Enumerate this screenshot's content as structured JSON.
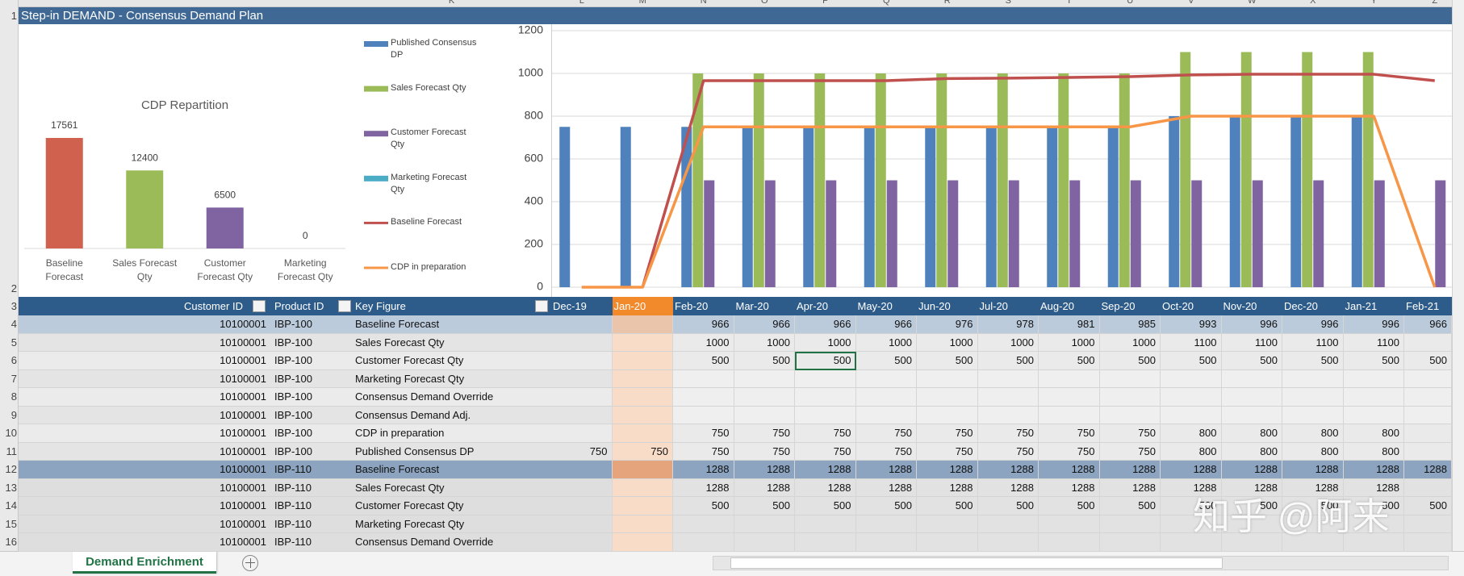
{
  "sheet_title": "Step-in DEMAND - Consensus Demand Plan",
  "column_letters": [
    "K",
    "L",
    "M",
    "N",
    "O",
    "P",
    "Q",
    "R",
    "S",
    "T",
    "U",
    "V",
    "W",
    "X",
    "Y",
    "Z"
  ],
  "row_numbers": [
    1,
    2,
    3,
    4,
    5,
    6,
    7,
    8,
    9,
    10,
    11,
    12,
    13,
    14,
    15,
    16
  ],
  "chart_data": [
    {
      "type": "bar",
      "title": "CDP Repartition",
      "categories": [
        "Baseline Forecast",
        "Sales Forecast Qty",
        "Customer Forecast Qty",
        "Marketing Forecast Qty"
      ],
      "values": [
        17561,
        12400,
        6500,
        0
      ],
      "colors": [
        "#d0614f",
        "#9bbb59",
        "#8064a2",
        "#4bacc6"
      ]
    },
    {
      "type": "combo",
      "categories": [
        "Dec-19",
        "Jan-20",
        "Feb-20",
        "Mar-20",
        "Apr-20",
        "May-20",
        "Jun-20",
        "Jul-20",
        "Aug-20",
        "Sep-20",
        "Oct-20",
        "Nov-20",
        "Dec-20",
        "Jan-21",
        "Feb-21"
      ],
      "ylim": [
        0,
        1200
      ],
      "yticks": [
        0,
        200,
        400,
        600,
        800,
        1000,
        1200
      ],
      "grid": true,
      "series": [
        {
          "name": "Published Consensus DP",
          "type": "bar",
          "color": "#4f81bd",
          "values": [
            750,
            750,
            750,
            750,
            750,
            750,
            750,
            750,
            750,
            750,
            800,
            800,
            800,
            800,
            null
          ]
        },
        {
          "name": "Sales Forecast Qty",
          "type": "bar",
          "color": "#9bbb59",
          "values": [
            null,
            null,
            1000,
            1000,
            1000,
            1000,
            1000,
            1000,
            1000,
            1000,
            1100,
            1100,
            1100,
            1100,
            null
          ]
        },
        {
          "name": "Customer Forecast Qty",
          "type": "bar",
          "color": "#8064a2",
          "values": [
            null,
            null,
            500,
            500,
            500,
            500,
            500,
            500,
            500,
            500,
            500,
            500,
            500,
            500,
            500
          ]
        },
        {
          "name": "Marketing Forecast Qty",
          "type": "bar",
          "color": "#4bacc6",
          "values": [
            null,
            null,
            null,
            null,
            null,
            null,
            null,
            null,
            null,
            null,
            null,
            null,
            null,
            null,
            null
          ]
        },
        {
          "name": "Baseline Forecast",
          "type": "line",
          "color": "#c0504d",
          "values": [
            null,
            0,
            966,
            966,
            966,
            966,
            976,
            978,
            981,
            985,
            993,
            996,
            996,
            996,
            966
          ]
        },
        {
          "name": "CDP in preparation",
          "type": "line",
          "color": "#f79646",
          "values": [
            0,
            0,
            750,
            750,
            750,
            750,
            750,
            750,
            750,
            750,
            800,
            800,
            800,
            800,
            0
          ]
        }
      ]
    }
  ],
  "table": {
    "columns": [
      "Customer ID",
      "Product ID",
      "Key Figure"
    ],
    "rows": [
      {
        "customer": "10100001",
        "product": "IBP-100",
        "key_figure": "Baseline Forecast",
        "values": [
          null,
          null,
          966,
          966,
          966,
          966,
          976,
          978,
          981,
          985,
          993,
          996,
          996,
          996,
          966
        ]
      },
      {
        "customer": "10100001",
        "product": "IBP-100",
        "key_figure": "Sales Forecast Qty",
        "values": [
          null,
          null,
          1000,
          1000,
          1000,
          1000,
          1000,
          1000,
          1000,
          1000,
          1100,
          1100,
          1100,
          1100,
          null
        ]
      },
      {
        "customer": "10100001",
        "product": "IBP-100",
        "key_figure": "Customer Forecast Qty",
        "values": [
          null,
          null,
          500,
          500,
          500,
          500,
          500,
          500,
          500,
          500,
          500,
          500,
          500,
          500,
          500
        ]
      },
      {
        "customer": "10100001",
        "product": "IBP-100",
        "key_figure": "Marketing Forecast Qty",
        "values": [
          null,
          null,
          null,
          null,
          null,
          null,
          null,
          null,
          null,
          null,
          null,
          null,
          null,
          null,
          null
        ]
      },
      {
        "customer": "10100001",
        "product": "IBP-100",
        "key_figure": "Consensus Demand Override",
        "values": [
          null,
          null,
          null,
          null,
          null,
          null,
          null,
          null,
          null,
          null,
          null,
          null,
          null,
          null,
          null
        ]
      },
      {
        "customer": "10100001",
        "product": "IBP-100",
        "key_figure": "Consensus Demand Adj.",
        "values": [
          null,
          null,
          null,
          null,
          null,
          null,
          null,
          null,
          null,
          null,
          null,
          null,
          null,
          null,
          null
        ]
      },
      {
        "customer": "10100001",
        "product": "IBP-100",
        "key_figure": "CDP in preparation",
        "values": [
          null,
          null,
          750,
          750,
          750,
          750,
          750,
          750,
          750,
          750,
          800,
          800,
          800,
          800,
          null
        ]
      },
      {
        "customer": "10100001",
        "product": "IBP-100",
        "key_figure": "Published Consensus DP",
        "values": [
          750,
          750,
          750,
          750,
          750,
          750,
          750,
          750,
          750,
          750,
          800,
          800,
          800,
          800,
          null
        ]
      },
      {
        "customer": "10100001",
        "product": "IBP-110",
        "key_figure": "Baseline Forecast",
        "values": [
          null,
          null,
          1288,
          1288,
          1288,
          1288,
          1288,
          1288,
          1288,
          1288,
          1288,
          1288,
          1288,
          1288,
          1288
        ]
      },
      {
        "customer": "10100001",
        "product": "IBP-110",
        "key_figure": "Sales Forecast Qty",
        "values": [
          null,
          null,
          1288,
          1288,
          1288,
          1288,
          1288,
          1288,
          1288,
          1288,
          1288,
          1288,
          1288,
          1288,
          null
        ]
      },
      {
        "customer": "10100001",
        "product": "IBP-110",
        "key_figure": "Customer Forecast Qty",
        "values": [
          null,
          null,
          500,
          500,
          500,
          500,
          500,
          500,
          500,
          500,
          500,
          500,
          500,
          500,
          500
        ]
      },
      {
        "customer": "10100001",
        "product": "IBP-110",
        "key_figure": "Marketing Forecast Qty",
        "values": [
          null,
          null,
          null,
          null,
          null,
          null,
          null,
          null,
          null,
          null,
          null,
          null,
          null,
          null,
          null
        ]
      },
      {
        "customer": "10100001",
        "product": "IBP-110",
        "key_figure": "Consensus Demand Override",
        "values": [
          null,
          null,
          null,
          null,
          null,
          null,
          null,
          null,
          null,
          null,
          null,
          null,
          null,
          null,
          null
        ]
      }
    ]
  },
  "sheet_tab": "Demand Enrichment",
  "watermark": "知乎 @阿来"
}
